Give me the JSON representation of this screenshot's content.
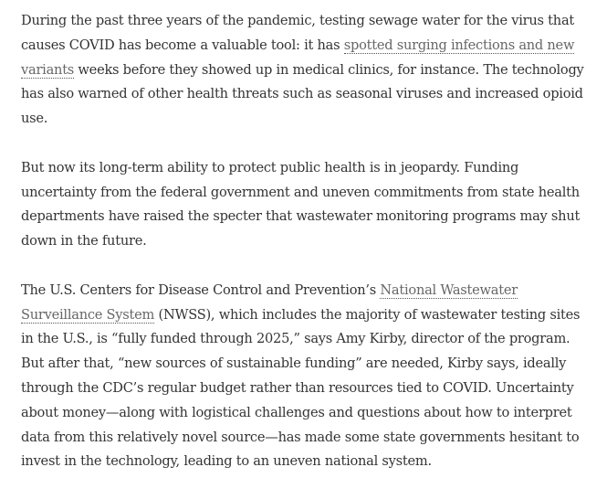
{
  "paragraphs": [
    {
      "before": "During the past three years of the pandemic, testing sewage water for the virus that causes COVID has become a valuable tool: it has ",
      "link": "spotted surging infections and new variants",
      "after": " weeks before they showed up in medical clinics, for instance. The technology has also warned of other health threats such as seasonal viruses and increased opioid use."
    },
    {
      "before": "But now its long-term ability to protect public health is in jeopardy. Funding uncertainty from the federal government and uneven commitments from state health departments have raised the specter that wastewater monitoring programs may shut down in the future.",
      "link": "",
      "after": ""
    },
    {
      "before": "The U.S. Centers for Disease Control and Prevention’s ",
      "link": "National Wastewater Surveillance System",
      "after": " (NWSS), which includes the majority of wastewater testing sites in the U.S., is “fully funded through 2025,” says Amy Kirby, director of the program. But after that, “new sources of sustainable funding” are needed, Kirby says, ideally through the CDC’s regular budget rather than resources tied to COVID. Uncertainty about money—along with logistical challenges and questions about how to interpret data from this relatively novel source—has made some state governments hesitant to invest in the technology, leading to an uneven national system."
    }
  ]
}
